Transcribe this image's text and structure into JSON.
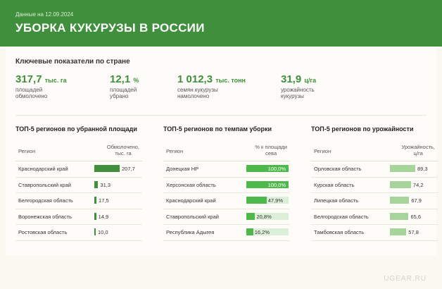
{
  "header": {
    "date": "Данные на 12.09.2024",
    "title": "УБОРКА КУКУРУЗЫ В РОССИИ"
  },
  "key_section_title": "Ключевые показатели по стране",
  "kpis": [
    {
      "value": "317,7",
      "unit": "тыс. га",
      "desc_line1": "площадей",
      "desc_line2": "обмолочено"
    },
    {
      "value": "12,1",
      "unit": "%",
      "desc_line1": "площадей",
      "desc_line2": "убрано"
    },
    {
      "value": "1 012,3",
      "unit": "тыс. тонн",
      "desc_line1": "семян кукурузы",
      "desc_line2": "намолочено"
    },
    {
      "value": "31,9",
      "unit": "ц/га",
      "desc_line1": "урожайность",
      "desc_line2": "кукурузы"
    }
  ],
  "tables": [
    {
      "title": "ТОП-5 регионов по убранной площади",
      "col_region": "Регион",
      "col_value_line1": "Обмолочено,",
      "col_value_line2": "тыс. га",
      "rows": [
        {
          "region": "Краснодарский край",
          "value": 207.7,
          "label": "207,7"
        },
        {
          "region": "Ставропольский край",
          "value": 31.3,
          "label": "31,3"
        },
        {
          "region": "Белгородская область",
          "value": 17.5,
          "label": "17,5"
        },
        {
          "region": "Воронежская область",
          "value": 14.9,
          "label": "14,9"
        },
        {
          "region": "Ростовская область",
          "value": 10.0,
          "label": "10,0"
        }
      ],
      "color": "#3f8f3c"
    },
    {
      "title": "ТОП-5 регионов по темпам уборки",
      "col_region": "Регион",
      "col_value_line1": "% к площади",
      "col_value_line2": "сева",
      "rows": [
        {
          "region": "Донецкая НР",
          "value": 100.0,
          "label": "100,0%"
        },
        {
          "region": "Херсонская область",
          "value": 100.0,
          "label": "100,0%"
        },
        {
          "region": "Краснодарский край",
          "value": 47.9,
          "label": "47,9%"
        },
        {
          "region": "Ставропольский край",
          "value": 20.8,
          "label": "20,8%"
        },
        {
          "region": "Республика Адыгея",
          "value": 16.2,
          "label": "16,2%"
        }
      ],
      "color": "#4fb84a"
    },
    {
      "title": "ТОП-5 регионов по урожайности",
      "col_region": "Регион",
      "col_value_line1": "Урожайность,",
      "col_value_line2": "ц/га",
      "rows": [
        {
          "region": "Орловская область",
          "value": 89.3,
          "label": "89,3"
        },
        {
          "region": "Курская область",
          "value": 74.2,
          "label": "74,2"
        },
        {
          "region": "Липецкая область",
          "value": 67.9,
          "label": "67,9"
        },
        {
          "region": "Белгородская область",
          "value": 65.6,
          "label": "65,6"
        },
        {
          "region": "Тамбовская область",
          "value": 57.8,
          "label": "57,8"
        }
      ],
      "color": "#a6d49a"
    }
  ],
  "watermark": "UGEAR.RU"
}
